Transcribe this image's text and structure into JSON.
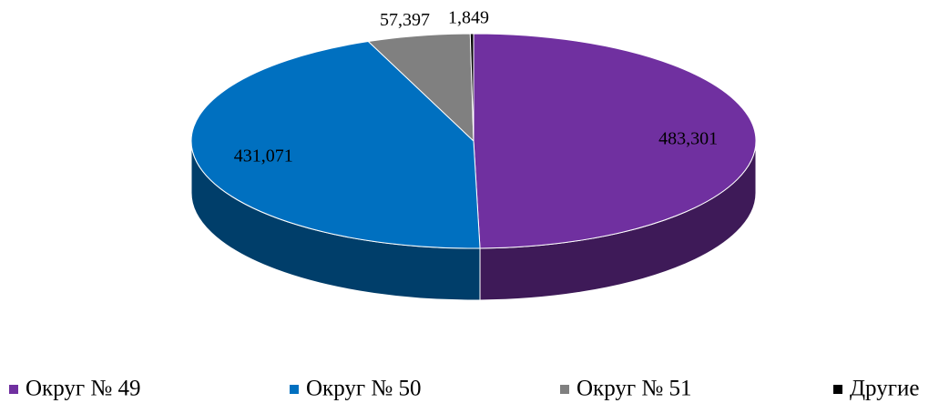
{
  "chart_data": {
    "type": "pie",
    "categories": [
      "Округ № 49",
      "Округ № 50",
      "Округ № 51",
      "Другие"
    ],
    "values": [
      483301,
      431071,
      57397,
      1849
    ],
    "value_labels": [
      "483,301",
      "431,071",
      "57,397",
      "1,849"
    ],
    "colors": [
      "#7030a0",
      "#0070c0",
      "#808080",
      "#000000"
    ],
    "legend": "bottom"
  }
}
